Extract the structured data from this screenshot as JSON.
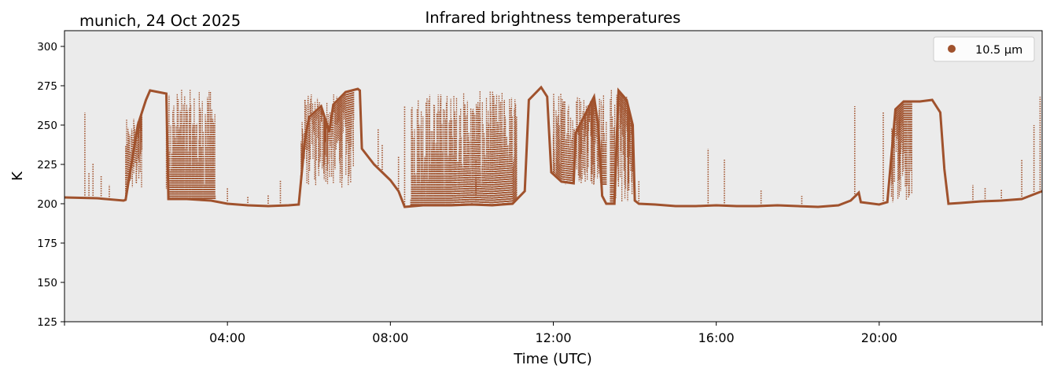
{
  "chart_data": {
    "type": "scatter",
    "title": "Infrared brightness temperatures",
    "subtitle": "munich, 24 Oct 2025",
    "xlabel": "Time (UTC)",
    "ylabel": "K",
    "xlim_hours": [
      0,
      24
    ],
    "ylim": [
      125,
      310
    ],
    "yticks": [
      125,
      150,
      175,
      200,
      225,
      250,
      275,
      300
    ],
    "xticks": [
      {
        "hour": 4,
        "label": "04:00"
      },
      {
        "hour": 8,
        "label": "08:00"
      },
      {
        "hour": 12,
        "label": "12:00"
      },
      {
        "hour": 16,
        "label": "16:00"
      },
      {
        "hour": 20,
        "label": "20:00"
      }
    ],
    "minor_xticks_hours": [
      0,
      24
    ],
    "legend": {
      "placement": "top-right",
      "entries": [
        "10.5 µm"
      ]
    },
    "colors": {
      "series": "#a0522d",
      "plot_background": "#ebebeb"
    },
    "series": [
      {
        "name": "10.5 µm",
        "baseline": [
          [
            0.0,
            204
          ],
          [
            0.8,
            203.5
          ],
          [
            1.5,
            202.5
          ],
          [
            1.45,
            202
          ],
          [
            1.8,
            250
          ],
          [
            2.0,
            266
          ],
          [
            2.1,
            272
          ],
          [
            2.5,
            270
          ],
          [
            2.55,
            203
          ],
          [
            3.0,
            203
          ],
          [
            3.6,
            202
          ],
          [
            4.0,
            200
          ],
          [
            4.5,
            199
          ],
          [
            5.0,
            198.5
          ],
          [
            5.5,
            199
          ],
          [
            5.75,
            199.5
          ],
          [
            5.9,
            240
          ],
          [
            6.0,
            255
          ],
          [
            6.3,
            262
          ],
          [
            6.5,
            246
          ],
          [
            6.6,
            263
          ],
          [
            6.9,
            271
          ],
          [
            7.2,
            273
          ],
          [
            7.25,
            272
          ],
          [
            7.3,
            235
          ],
          [
            7.6,
            225
          ],
          [
            8.0,
            215
          ],
          [
            8.2,
            208
          ],
          [
            8.35,
            198
          ],
          [
            8.8,
            199
          ],
          [
            9.5,
            199
          ],
          [
            10.0,
            199.5
          ],
          [
            10.5,
            199
          ],
          [
            11.0,
            200
          ],
          [
            11.3,
            208
          ],
          [
            11.4,
            266
          ],
          [
            11.7,
            274
          ],
          [
            11.85,
            268
          ],
          [
            11.95,
            220
          ],
          [
            12.2,
            214
          ],
          [
            12.5,
            213
          ],
          [
            12.55,
            245
          ],
          [
            13.0,
            268
          ],
          [
            13.1,
            250
          ],
          [
            13.2,
            205
          ],
          [
            13.3,
            200
          ],
          [
            13.5,
            200
          ],
          [
            13.6,
            272
          ],
          [
            13.8,
            266
          ],
          [
            13.95,
            250
          ],
          [
            14.0,
            202
          ],
          [
            14.1,
            200
          ],
          [
            14.5,
            199.5
          ],
          [
            15.0,
            198.5
          ],
          [
            15.5,
            198.5
          ],
          [
            16.0,
            199
          ],
          [
            16.5,
            198.5
          ],
          [
            17.0,
            198.5
          ],
          [
            17.5,
            199
          ],
          [
            18.0,
            198.5
          ],
          [
            18.5,
            198
          ],
          [
            19.0,
            199
          ],
          [
            19.3,
            202
          ],
          [
            19.5,
            207
          ],
          [
            19.55,
            201
          ],
          [
            20.0,
            199.5
          ],
          [
            20.2,
            201
          ],
          [
            20.4,
            260
          ],
          [
            20.6,
            265
          ],
          [
            21.0,
            265
          ],
          [
            21.3,
            266
          ],
          [
            21.5,
            258
          ],
          [
            21.6,
            222
          ],
          [
            21.7,
            200
          ],
          [
            22.0,
            200.5
          ],
          [
            22.5,
            201.5
          ],
          [
            23.0,
            202
          ],
          [
            23.5,
            203
          ],
          [
            24.0,
            208
          ]
        ],
        "scatter_bands": [
          {
            "start": 1.5,
            "end": 1.9,
            "low": 205,
            "high": 254
          },
          {
            "start": 2.5,
            "end": 3.7,
            "low": 203,
            "high": 273
          },
          {
            "start": 5.8,
            "end": 7.1,
            "low": 210,
            "high": 270
          },
          {
            "start": 8.5,
            "end": 11.1,
            "low": 199,
            "high": 272
          },
          {
            "start": 12.0,
            "end": 13.3,
            "low": 212,
            "high": 272
          },
          {
            "start": 13.4,
            "end": 13.95,
            "low": 200,
            "high": 274
          },
          {
            "start": 20.3,
            "end": 20.8,
            "low": 200,
            "high": 255
          }
        ],
        "spikes": [
          [
            0.5,
            258
          ],
          [
            0.6,
            220
          ],
          [
            0.7,
            226
          ],
          [
            0.9,
            218
          ],
          [
            1.1,
            212
          ],
          [
            1.7,
            254
          ],
          [
            4.0,
            210
          ],
          [
            4.5,
            205
          ],
          [
            5.0,
            206
          ],
          [
            5.3,
            215
          ],
          [
            7.7,
            248
          ],
          [
            7.8,
            238
          ],
          [
            8.2,
            230
          ],
          [
            8.35,
            262
          ],
          [
            10.1,
            228
          ],
          [
            14.1,
            215
          ],
          [
            15.8,
            235
          ],
          [
            16.2,
            228
          ],
          [
            17.1,
            209
          ],
          [
            18.1,
            205
          ],
          [
            19.4,
            262
          ],
          [
            20.1,
            258
          ],
          [
            20.5,
            222
          ],
          [
            22.3,
            212
          ],
          [
            22.6,
            210
          ],
          [
            23.0,
            209
          ],
          [
            23.5,
            228
          ],
          [
            23.8,
            250
          ],
          [
            23.95,
            268
          ]
        ]
      }
    ]
  }
}
